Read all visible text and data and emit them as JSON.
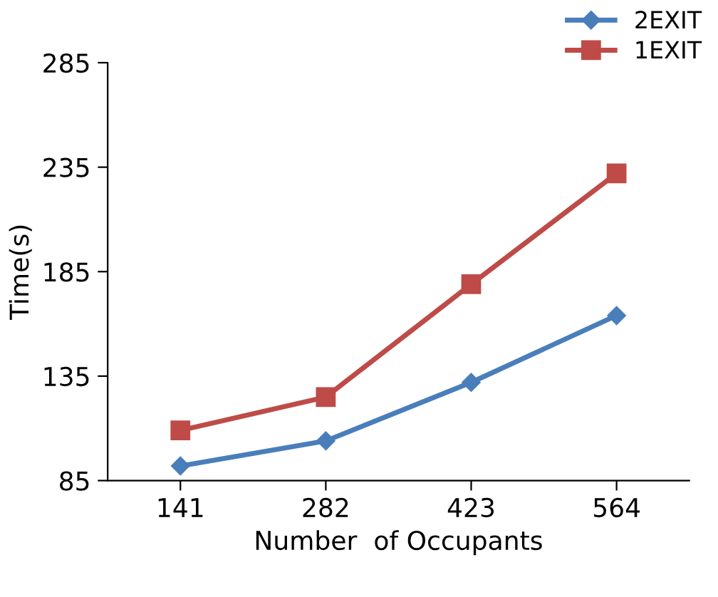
{
  "chart_data": {
    "type": "line",
    "xlabel": "Number  of Occupants",
    "ylabel": "Time(s)",
    "categories": [
      "141",
      "282",
      "423",
      "564"
    ],
    "series": [
      {
        "name": "2EXIT",
        "color": "#4a7ebb",
        "marker": "diamond",
        "values": [
          92,
          104,
          132,
          164
        ]
      },
      {
        "name": "1EXIT",
        "color": "#be4b48",
        "marker": "square",
        "values": [
          109,
          125,
          179,
          232
        ]
      }
    ],
    "ylim": [
      85,
      285
    ],
    "yticks": [
      85,
      135,
      185,
      235,
      285
    ],
    "grid": false,
    "legend": "top right",
    "line_style": "solid"
  }
}
